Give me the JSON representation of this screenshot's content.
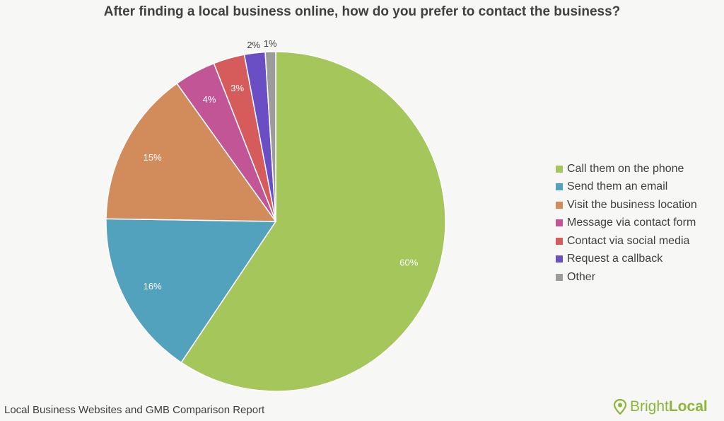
{
  "title": "After finding a local business online, how do you prefer to contact the business?",
  "chart_data": {
    "type": "pie",
    "title": "After finding a local business online, how do you prefer to contact the business?",
    "start": "top, clockwise",
    "slices": [
      {
        "label": "Call them on the phone",
        "value": 60,
        "display": "60%",
        "color": "#a5c65a"
      },
      {
        "label": "Send them an email",
        "value": 16,
        "display": "16%",
        "color": "#52a1bd"
      },
      {
        "label": "Visit the business location",
        "value": 15,
        "display": "15%",
        "color": "#d28c5c"
      },
      {
        "label": "Message via contact form",
        "value": 4,
        "display": "4%",
        "color": "#c25596"
      },
      {
        "label": "Contact via social media",
        "value": 3,
        "display": "3%",
        "color": "#d65b5b"
      },
      {
        "label": "Request a callback",
        "value": 2,
        "display": "2%",
        "color": "#6a4fc4"
      },
      {
        "label": "Other",
        "value": 1,
        "display": "1%",
        "color": "#9c9c9c"
      }
    ],
    "legend_position": "right"
  },
  "footer": "Local Business Websites and GMB Comparison Report",
  "brand": {
    "part1": "Bright",
    "part2": "Local",
    "color": "#8db53c"
  }
}
